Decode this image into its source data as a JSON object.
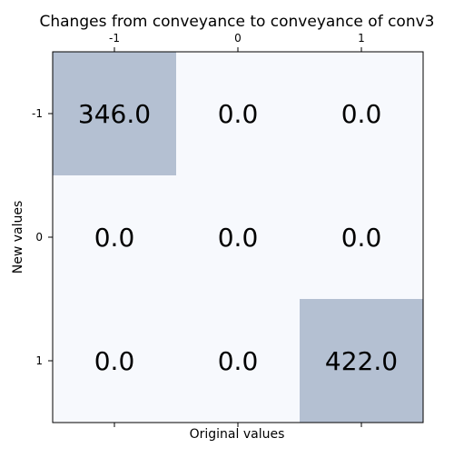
{
  "chart_data": {
    "type": "heatmap",
    "title": "Changes from conveyance to conveyance of conv3",
    "xlabel": "Original values",
    "ylabel": "New values",
    "x_ticks": [
      "-1",
      "0",
      "1"
    ],
    "y_ticks": [
      "-1",
      "0",
      "1"
    ],
    "x_tick_position": "top-and-bottom",
    "grid": false,
    "values": [
      [
        346.0,
        0.0,
        0.0
      ],
      [
        0.0,
        0.0,
        0.0
      ],
      [
        0.0,
        0.0,
        422.0
      ]
    ],
    "cell_labels": [
      [
        "346.0",
        "0.0",
        "0.0"
      ],
      [
        "0.0",
        "0.0",
        "0.0"
      ],
      [
        "0.0",
        "0.0",
        "422.0"
      ]
    ],
    "colors": {
      "low": "#f7f9fd",
      "high": "#b4c0d2",
      "axis": "#000000"
    }
  }
}
